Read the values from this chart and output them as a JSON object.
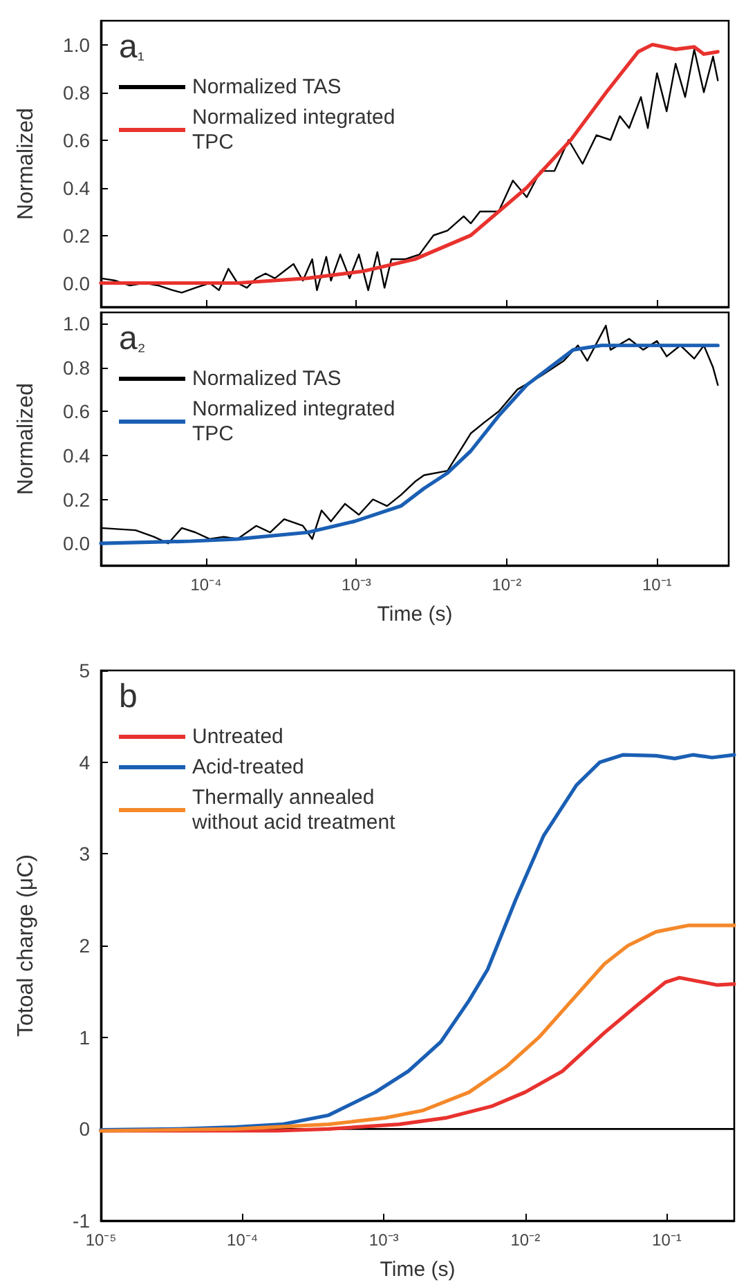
{
  "chart_data": [
    {
      "type": "line",
      "title": "a₁",
      "ylabel": "Normalized",
      "log": "x",
      "grid": false,
      "legend": "top left",
      "marker": "none",
      "line_style": "solid",
      "tick_labels": "y",
      "xlim": [
        2e-05,
        0.3
      ],
      "xticks": [
        {
          "value": 0.0001,
          "label": null
        },
        {
          "value": 0.001,
          "label": null
        },
        {
          "value": 0.01,
          "label": null
        },
        {
          "value": 0.1,
          "label": null
        }
      ],
      "ylim": [
        -0.1,
        1.1
      ],
      "yticks": [
        {
          "value": 0,
          "label": "0.0"
        },
        {
          "value": 0.2,
          "label": "0.2"
        },
        {
          "value": 0.4,
          "label": "0.4"
        },
        {
          "value": 0.6,
          "label": "0.6"
        },
        {
          "value": 0.8,
          "label": "0.8"
        },
        {
          "value": 1,
          "label": "1.0"
        }
      ],
      "series": [
        {
          "name": "Normalized TAS",
          "color": "#000000",
          "x": [
            2e-05,
            2.5e-05,
            3.1e-05,
            3.9e-05,
            4.8e-05,
            6e-05,
            6.9e-05,
            8.5e-05,
            0.000106,
            0.000122,
            0.000141,
            0.000162,
            0.000187,
            0.000216,
            0.000249,
            0.000287,
            0.000331,
            0.000382,
            0.000441,
            0.000509,
            0.000547,
            0.000631,
            0.000678,
            0.000782,
            0.000902,
            0.00104,
            0.0012,
            0.00138,
            0.00154,
            0.00171,
            0.00212,
            0.00263,
            0.00326,
            0.00404,
            0.00518,
            0.00577,
            0.00665,
            0.00885,
            0.011,
            0.0136,
            0.0168,
            0.0208,
            0.0258,
            0.032,
            0.0396,
            0.0491,
            0.0566,
            0.0653,
            0.0782,
            0.0869,
            0.1,
            0.116,
            0.133,
            0.154,
            0.177,
            0.205,
            0.236,
            0.254
          ],
          "values": [
            0.02,
            0.01,
            -0.01,
            0.0,
            -0.01,
            -0.03,
            -0.04,
            -0.02,
            0.0,
            -0.03,
            0.06,
            0.0,
            -0.02,
            0.02,
            0.04,
            0.02,
            0.05,
            0.08,
            0.01,
            0.1,
            -0.03,
            0.11,
            0.01,
            0.12,
            0.02,
            0.12,
            -0.03,
            0.13,
            -0.02,
            0.1,
            0.1,
            0.12,
            0.2,
            0.22,
            0.28,
            0.25,
            0.3,
            0.3,
            0.43,
            0.36,
            0.47,
            0.47,
            0.6,
            0.5,
            0.62,
            0.6,
            0.7,
            0.65,
            0.78,
            0.65,
            0.88,
            0.72,
            0.92,
            0.78,
            0.98,
            0.8,
            0.95,
            0.85
          ]
        },
        {
          "name": "Normalized integrated TPC",
          "color": "#e8322e",
          "x": [
            2e-05,
            0.000162,
            0.00047,
            0.00112,
            0.00245,
            0.00577,
            0.0136,
            0.0267,
            0.046,
            0.075,
            0.0933,
            0.133,
            0.177,
            0.205,
            0.254
          ],
          "values": [
            0,
            0,
            0.02,
            0.05,
            0.1,
            0.2,
            0.4,
            0.6,
            0.8,
            0.97,
            1.0,
            0.98,
            0.99,
            0.96,
            0.97
          ]
        }
      ]
    },
    {
      "type": "line",
      "title": "a₂",
      "xlabel": "Time (s)",
      "ylabel": "Normalized",
      "log": "x",
      "grid": false,
      "legend": "top left",
      "marker": "none",
      "line_style": "solid",
      "xlim": [
        2e-05,
        0.3
      ],
      "xticks": [
        {
          "value": 0.0001,
          "label": "10⁻⁴"
        },
        {
          "value": 0.001,
          "label": "10⁻³"
        },
        {
          "value": 0.01,
          "label": "10⁻²"
        },
        {
          "value": 0.1,
          "label": "10⁻¹"
        }
      ],
      "ylim": [
        -0.1,
        1.05
      ],
      "yticks": [
        {
          "value": 0,
          "label": "0.0"
        },
        {
          "value": 0.2,
          "label": "0.2"
        },
        {
          "value": 0.4,
          "label": "0.4"
        },
        {
          "value": 0.6,
          "label": "0.6"
        },
        {
          "value": 0.8,
          "label": "0.8"
        },
        {
          "value": 1,
          "label": "1.0"
        }
      ],
      "series": [
        {
          "name": "Normalized TAS",
          "color": "#000000",
          "x": [
            2e-05,
            3.4e-05,
            4.5e-05,
            5.6e-05,
            6.9e-05,
            8.5e-05,
            0.000106,
            0.000131,
            0.000162,
            0.000216,
            0.000267,
            0.000331,
            0.000441,
            0.000509,
            0.000587,
            0.000678,
            0.00084,
            0.00104,
            0.00129,
            0.0016,
            0.00198,
            0.00245,
            0.00282,
            0.00404,
            0.00577,
            0.0071,
            0.00885,
            0.0118,
            0.0168,
            0.024,
            0.0298,
            0.0344,
            0.0457,
            0.0491,
            0.0653,
            0.081,
            0.1,
            0.116,
            0.143,
            0.177,
            0.205,
            0.236,
            0.254
          ],
          "values": [
            0.07,
            0.06,
            0.03,
            0.0,
            0.07,
            0.05,
            0.02,
            0.03,
            0.02,
            0.08,
            0.05,
            0.11,
            0.08,
            0.02,
            0.15,
            0.1,
            0.18,
            0.13,
            0.2,
            0.17,
            0.22,
            0.28,
            0.31,
            0.33,
            0.5,
            0.55,
            0.6,
            0.7,
            0.76,
            0.83,
            0.9,
            0.83,
            0.99,
            0.88,
            0.93,
            0.88,
            0.92,
            0.85,
            0.9,
            0.84,
            0.9,
            0.8,
            0.72
          ]
        },
        {
          "name": "Normalized integrated TPC",
          "color": "#1a5fb4",
          "x": [
            2e-05,
            7.9e-05,
            0.000162,
            0.000474,
            0.00097,
            0.00198,
            0.00282,
            0.00404,
            0.00577,
            0.00885,
            0.0136,
            0.0194,
            0.0277,
            0.0426,
            0.254
          ],
          "values": [
            0,
            0.01,
            0.02,
            0.05,
            0.1,
            0.17,
            0.25,
            0.32,
            0.42,
            0.58,
            0.72,
            0.8,
            0.88,
            0.9,
            0.9
          ]
        }
      ]
    },
    {
      "type": "line",
      "title": "b",
      "xlabel": "Time (s)",
      "ylabel": "Totoal charge (μC)",
      "log": "x",
      "grid": false,
      "legend": "top left",
      "marker": "none",
      "line_style": "solid",
      "xlim": [
        1e-05,
        0.3
      ],
      "xticks": [
        {
          "value": 1e-05,
          "label": "10⁻⁵"
        },
        {
          "value": 0.0001,
          "label": "10⁻⁴"
        },
        {
          "value": 0.001,
          "label": "10⁻³"
        },
        {
          "value": 0.01,
          "label": "10⁻²"
        },
        {
          "value": 0.1,
          "label": "10⁻¹"
        }
      ],
      "ylim": [
        -1,
        5
      ],
      "yticks": [
        -1,
        0,
        1,
        2,
        3,
        4,
        5
      ],
      "ref_lines": [
        {
          "axis": "y",
          "value": 0,
          "color": "#000000"
        }
      ],
      "series": [
        {
          "name": "Untreated",
          "color": "#e8322e",
          "x": [
            1e-05,
            0.000176,
            0.000407,
            0.00128,
            0.00273,
            0.00585,
            0.00995,
            0.0183,
            0.0363,
            0.0619,
            0.098,
            0.123,
            0.18,
            0.226,
            0.3
          ],
          "values": [
            -0.02,
            -0.02,
            0.0,
            0.05,
            0.12,
            0.25,
            0.4,
            0.63,
            1.05,
            1.35,
            1.6,
            1.65,
            1.6,
            1.57,
            1.58
          ]
        },
        {
          "name": "Acid-treated",
          "color": "#1a5fb4",
          "x": [
            1e-05,
            3.56e-05,
            8.9e-05,
            0.00019,
            0.000407,
            0.00087,
            0.00149,
            0.00253,
            0.004,
            0.00542,
            0.00855,
            0.0135,
            0.023,
            0.0337,
            0.0493,
            0.084,
            0.114,
            0.154,
            0.209,
            0.3
          ],
          "values": [
            -0.01,
            0.0,
            0.02,
            0.05,
            0.15,
            0.4,
            0.63,
            0.95,
            1.4,
            1.74,
            2.5,
            3.2,
            3.75,
            4.0,
            4.08,
            4.07,
            4.04,
            4.08,
            4.05,
            4.08
          ]
        },
        {
          "name": "Thermally annealed without acid treatment",
          "color": "#f5882a",
          "x": [
            1e-05,
            8.9e-05,
            0.000407,
            0.00102,
            0.00187,
            0.004,
            0.00735,
            0.0125,
            0.0213,
            0.0363,
            0.0532,
            0.084,
            0.143,
            0.3
          ],
          "values": [
            -0.02,
            0.0,
            0.05,
            0.12,
            0.2,
            0.4,
            0.68,
            1.0,
            1.4,
            1.8,
            2.0,
            2.15,
            2.22,
            2.22
          ]
        }
      ]
    }
  ]
}
